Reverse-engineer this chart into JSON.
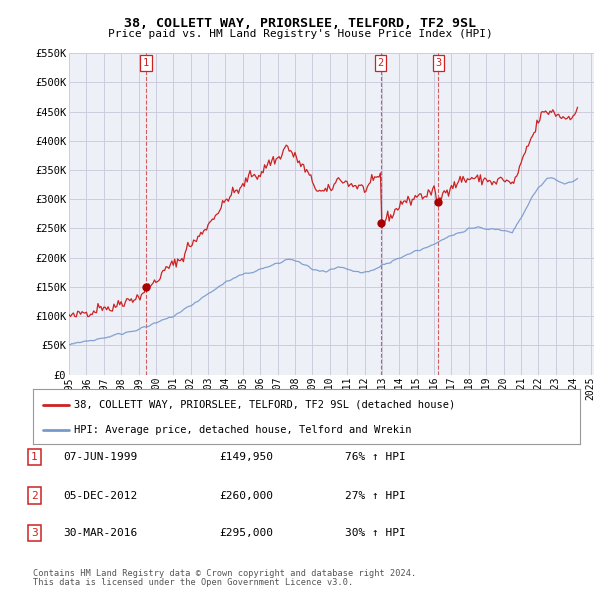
{
  "title": "38, COLLETT WAY, PRIORSLEE, TELFORD, TF2 9SL",
  "subtitle": "Price paid vs. HM Land Registry's House Price Index (HPI)",
  "ylim": [
    0,
    550000
  ],
  "yticks": [
    0,
    50000,
    100000,
    150000,
    200000,
    250000,
    300000,
    350000,
    400000,
    450000,
    500000,
    550000
  ],
  "ytick_labels": [
    "£0",
    "£50K",
    "£100K",
    "£150K",
    "£200K",
    "£250K",
    "£300K",
    "£350K",
    "£400K",
    "£450K",
    "£500K",
    "£550K"
  ],
  "red_line_color": "#cc2222",
  "blue_line_color": "#7799cc",
  "sale_dot_color": "#aa0000",
  "vline_color": "#cc4444",
  "grid_color": "#ccccdd",
  "plot_bg_color": "#eef0f8",
  "background_color": "#ffffff",
  "sales": [
    {
      "num": 1,
      "date_x": 1999.42,
      "price": 149950,
      "pct": "76%",
      "dir": "↑",
      "label": "07-JUN-1999",
      "price_str": "£149,950"
    },
    {
      "num": 2,
      "date_x": 2012.92,
      "price": 260000,
      "pct": "27%",
      "dir": "↑",
      "label": "05-DEC-2012",
      "price_str": "£260,000"
    },
    {
      "num": 3,
      "date_x": 2016.24,
      "price": 295000,
      "pct": "30%",
      "dir": "↑",
      "label": "30-MAR-2016",
      "price_str": "£295,000"
    }
  ],
  "legend_label_red": "38, COLLETT WAY, PRIORSLEE, TELFORD, TF2 9SL (detached house)",
  "legend_label_blue": "HPI: Average price, detached house, Telford and Wrekin",
  "footer1": "Contains HM Land Registry data © Crown copyright and database right 2024.",
  "footer2": "This data is licensed under the Open Government Licence v3.0.",
  "xtick_start": 1995,
  "xtick_end": 2025,
  "xlim_start": 1995.0,
  "xlim_end": 2025.2
}
